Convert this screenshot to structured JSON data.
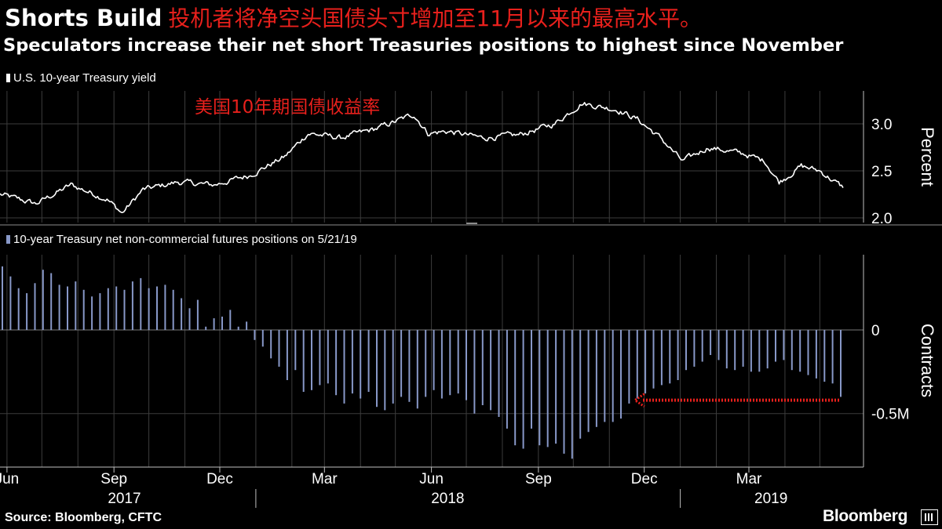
{
  "header": {
    "title_en": "Shorts Build",
    "title_zh": "投机者将净空头国债头寸增加至11月以来的最高水平。",
    "subtitle": "Speculators increase their net short Treasuries positions to highest since November"
  },
  "annotation_zh": "美国10年期国债收益率",
  "source": "Source: Bloomberg, CFTC",
  "brand": "Bloomberg",
  "colors": {
    "background": "#000000",
    "yield_line": "#ffffff",
    "bars": "#8898c8",
    "annotation": "#e8201c",
    "axis": "#bfbfbf"
  },
  "chart_data": [
    {
      "type": "line",
      "legend": "U.S. 10-year Treasury yield",
      "ylabel": "Percent",
      "ylim": [
        1.95,
        3.35
      ],
      "yticks": [
        2.0,
        2.5,
        3.0
      ],
      "ytick_labels": [
        "2.0",
        "2.5",
        "3.0"
      ],
      "x_start": "2017-05-26",
      "x_end": "2019-05-21",
      "x": [
        "2017-05-26",
        "2017-06-26",
        "2017-07-26",
        "2017-08-26",
        "2017-09-08",
        "2017-09-26",
        "2017-10-26",
        "2017-11-26",
        "2017-12-26",
        "2018-01-26",
        "2018-02-15",
        "2018-03-15",
        "2018-04-15",
        "2018-05-17",
        "2018-05-29",
        "2018-06-15",
        "2018-07-15",
        "2018-08-15",
        "2018-09-15",
        "2018-10-08",
        "2018-11-08",
        "2018-11-25",
        "2018-12-15",
        "2019-01-03",
        "2019-01-25",
        "2019-02-25",
        "2019-03-15",
        "2019-03-27",
        "2019-04-15",
        "2019-05-01",
        "2019-05-21"
      ],
      "y": [
        2.25,
        2.15,
        2.35,
        2.2,
        2.05,
        2.3,
        2.38,
        2.35,
        2.45,
        2.65,
        2.9,
        2.85,
        2.95,
        3.1,
        2.9,
        2.92,
        2.85,
        2.88,
        3.0,
        3.22,
        3.15,
        3.05,
        2.85,
        2.6,
        2.75,
        2.68,
        2.6,
        2.38,
        2.55,
        2.5,
        2.32
      ]
    },
    {
      "type": "bar",
      "legend": "10-year Treasury net non-commercial futures positions on 5/21/19",
      "ylabel": "Contracts",
      "ylim": [
        -0.82,
        0.45
      ],
      "yticks": [
        0,
        -0.5
      ],
      "ytick_labels": [
        "0",
        "-0.5M"
      ],
      "units": "million contracts",
      "x_start": "2017-05-26",
      "x_end": "2019-05-21",
      "values": [
        0.38,
        0.32,
        0.25,
        0.22,
        0.28,
        0.36,
        0.34,
        0.27,
        0.26,
        0.29,
        0.24,
        0.2,
        0.22,
        0.25,
        0.26,
        0.24,
        0.29,
        0.31,
        0.25,
        0.26,
        0.27,
        0.24,
        0.19,
        0.13,
        0.18,
        0.02,
        0.07,
        0.08,
        0.12,
        0.02,
        0.05,
        -0.06,
        -0.1,
        -0.17,
        -0.22,
        -0.3,
        -0.24,
        -0.37,
        -0.36,
        -0.33,
        -0.32,
        -0.39,
        -0.44,
        -0.38,
        -0.41,
        -0.37,
        -0.46,
        -0.48,
        -0.44,
        -0.4,
        -0.43,
        -0.47,
        -0.4,
        -0.36,
        -0.41,
        -0.39,
        -0.38,
        -0.42,
        -0.5,
        -0.45,
        -0.48,
        -0.52,
        -0.59,
        -0.69,
        -0.71,
        -0.59,
        -0.69,
        -0.7,
        -0.68,
        -0.74,
        -0.77,
        -0.65,
        -0.61,
        -0.58,
        -0.55,
        -0.55,
        -0.53,
        -0.44,
        -0.41,
        -0.38,
        -0.35,
        -0.33,
        -0.32,
        -0.3,
        -0.24,
        -0.22,
        -0.19,
        -0.15,
        -0.18,
        -0.23,
        -0.24,
        -0.22,
        -0.25,
        -0.25,
        -0.23,
        -0.19,
        -0.18,
        -0.24,
        -0.25,
        -0.27,
        -0.29,
        -0.31,
        -0.32,
        -0.4
      ],
      "annotation": {
        "type": "arrow",
        "from_date": "2019-05-21",
        "to_date": "2018-11-23",
        "value": -0.42,
        "style": "dotted",
        "color": "#e8201c"
      }
    }
  ],
  "x_axis": {
    "months": [
      "Jun",
      "Sep",
      "Dec",
      "Mar",
      "Jun",
      "Sep",
      "Dec",
      "Mar"
    ],
    "month_dates": [
      "2017-06-01",
      "2017-09-01",
      "2017-12-01",
      "2018-03-01",
      "2018-06-01",
      "2018-09-01",
      "2018-12-01",
      "2019-03-01"
    ],
    "years": [
      "2017",
      "2018",
      "2019"
    ],
    "year_dates": [
      "2017-09-10",
      "2018-06-15",
      "2019-03-20"
    ],
    "year_separators": [
      "2018-01-01",
      "2019-01-01"
    ]
  }
}
